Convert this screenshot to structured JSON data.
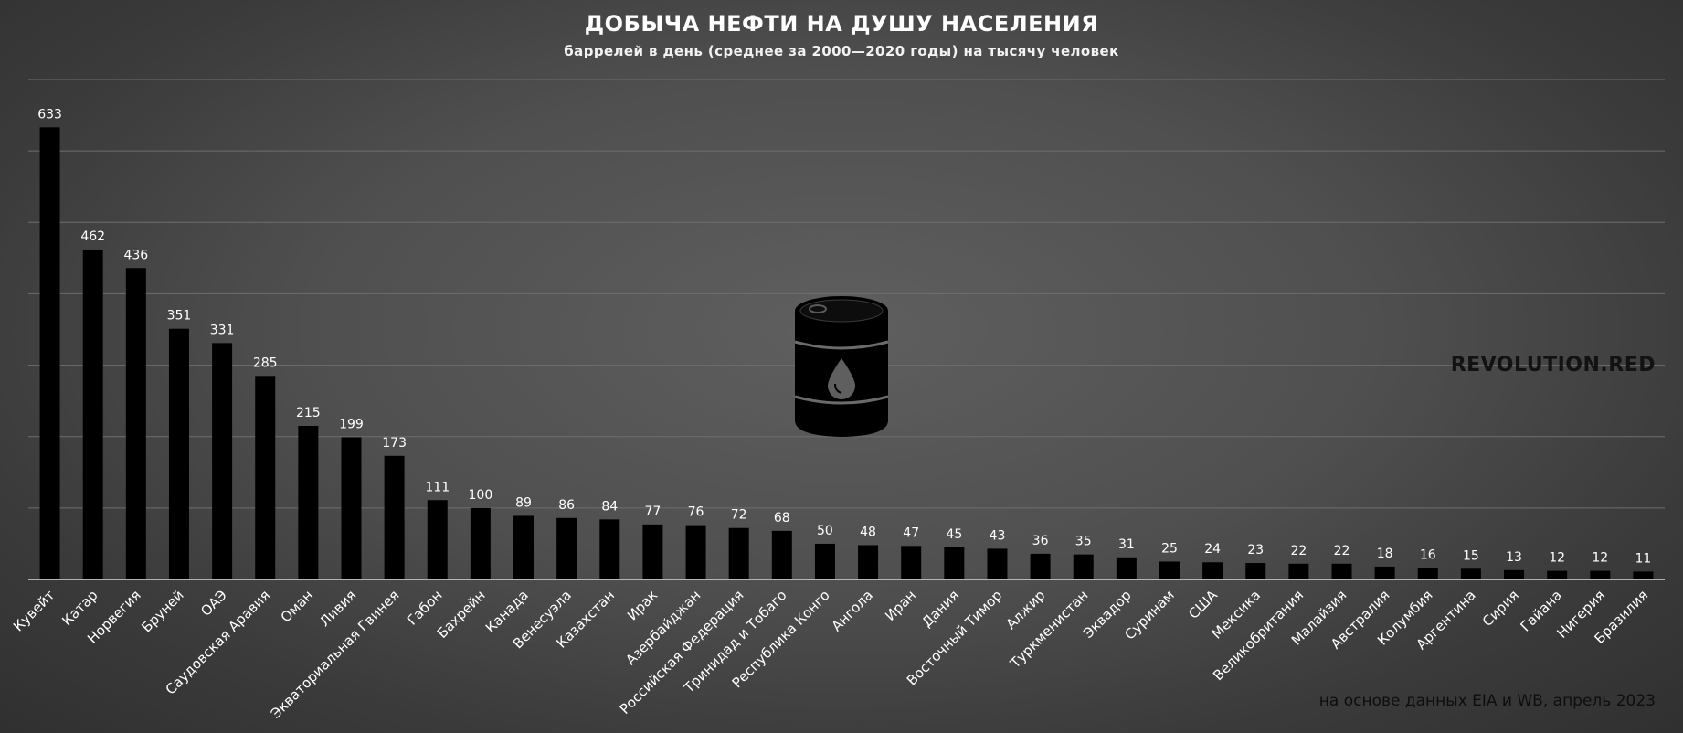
{
  "header": {
    "title": "ДОБЫЧА НЕФТИ НА ДУШУ НАСЕЛЕНИЯ",
    "subtitle": "баррелей в день (среднее за 2000—2020 годы) на тысячу человек"
  },
  "brand": "REVOLUTION.RED",
  "source_note": "на основе данных EIA и WB, апрель 2023",
  "icons": {
    "barrel": "oil-barrel-icon"
  },
  "colors": {
    "bar": "#000000",
    "text": "#ffffff",
    "grid": "#6e6e6e",
    "axis": "#d9d9d9"
  },
  "chart_data": {
    "type": "bar",
    "categories": [
      "Кувейт",
      "Катар",
      "Норвегия",
      "Бруней",
      "ОАЭ",
      "Саудовская Аравия",
      "Оман",
      "Ливия",
      "Экваториальная Гвинея",
      "Габон",
      "Бахрейн",
      "Канада",
      "Венесуэла",
      "Казахстан",
      "Ирак",
      "Азербайджан",
      "Российская Федерация",
      "Тринидад и Тобаго",
      "Республика Конго",
      "Ангола",
      "Иран",
      "Дания",
      "Восточный Тимор",
      "Алжир",
      "Туркменистан",
      "Эквадор",
      "Суринам",
      "США",
      "Мексика",
      "Великобритания",
      "Малайзия",
      "Австралия",
      "Колумбия",
      "Аргентина",
      "Сирия",
      "Гайана",
      "Нигерия",
      "Бразилия"
    ],
    "values": [
      633,
      462,
      436,
      351,
      331,
      285,
      215,
      199,
      173,
      111,
      100,
      89,
      86,
      84,
      77,
      76,
      72,
      68,
      50,
      48,
      47,
      45,
      43,
      36,
      35,
      31,
      25,
      24,
      23,
      22,
      22,
      18,
      16,
      15,
      13,
      12,
      12,
      11
    ],
    "ylim": [
      0,
      700
    ],
    "grid": true,
    "legend": "none"
  }
}
